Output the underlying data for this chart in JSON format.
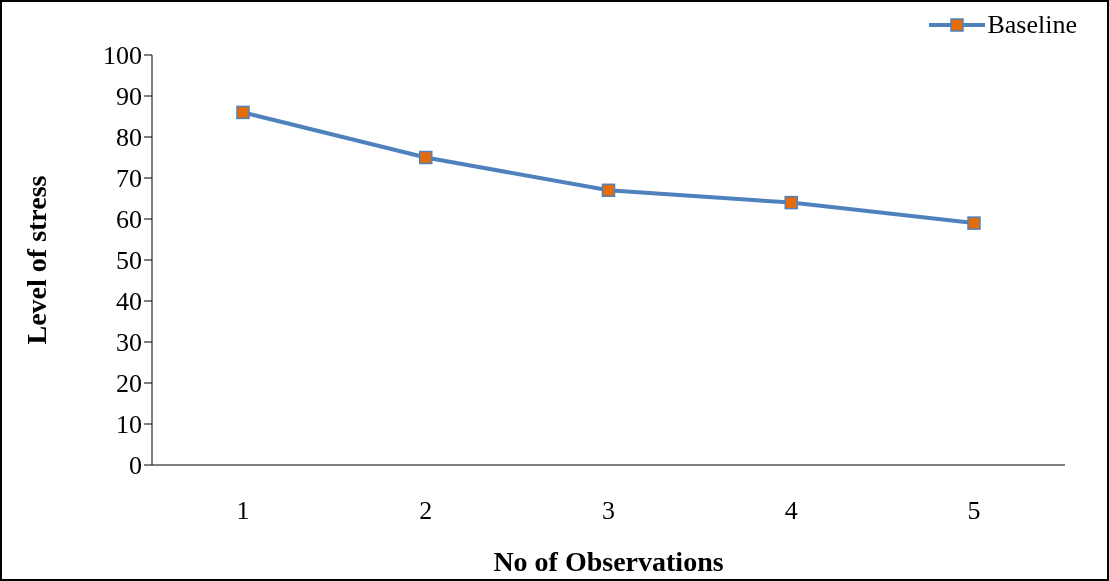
{
  "chart_data": {
    "type": "line",
    "xlabel": "No of Observations",
    "ylabel": "Level of stress",
    "categories": [
      "1",
      "2",
      "3",
      "4",
      "5"
    ],
    "series": [
      {
        "name": "Baseline",
        "color": "#4f81bd",
        "values": [
          86,
          75,
          67,
          64,
          59
        ]
      }
    ],
    "ylim": [
      0,
      100
    ],
    "yticks": [
      0,
      10,
      20,
      30,
      40,
      50,
      60,
      70,
      80,
      90,
      100
    ],
    "grid": false,
    "legend": "top right",
    "marker": "square",
    "line_style": "solid"
  }
}
